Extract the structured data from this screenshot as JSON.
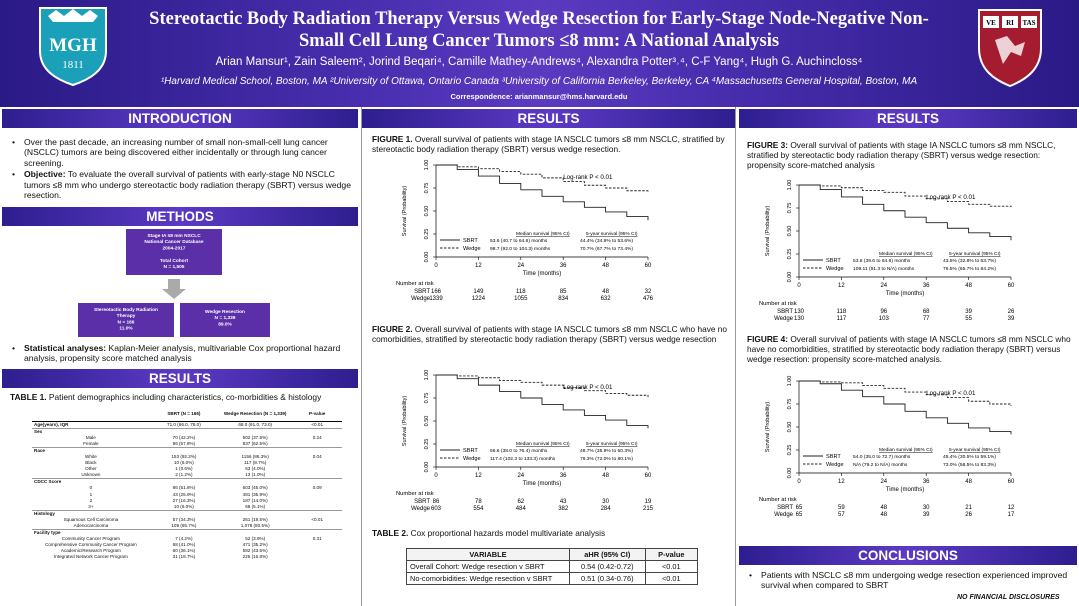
{
  "header": {
    "title": "Stereotactic Body Radiation Therapy Versus Wedge Resection for Early-Stage Node-Negative Non-Small Cell Lung Cancer Tumors ≤8 mm: A National Analysis",
    "authors": "Arian Mansur¹, Zain Saleem², Jorind Beqari⁴, Camille Mathey-Andrews⁴, Alexandra Potter³˒⁴, C-F Yang⁴, Hugh G. Auchincloss⁴",
    "affiliations": "¹Harvard Medical School, Boston, MA  ²University of Ottawa, Ontario Canada ³University of California Berkeley, Berkeley, CA ⁴Massachusetts General Hospital, Boston, MA",
    "correspondence": "Correspondence: arianmansur@hms.harvard.edu",
    "mgh_logo": {
      "text": "MGH",
      "year": "1811"
    },
    "harvard_logo": {
      "letters": [
        "VE",
        "RI",
        "TAS"
      ]
    }
  },
  "introduction": {
    "heading": "INTRODUCTION",
    "bullets": [
      "Over the past decade, an increasing number of small non-small-cell lung cancer (NSCLC) tumors are being discovered either incidentally or through lung cancer screening."
    ],
    "objective_label": "Objective:",
    "objective_text": " To evaluate the overall survival of patients with early-stage N0 NSCLC tumors ≤8 mm who undergo stereotactic body radiation therapy (SBRT) versus wedge resection."
  },
  "methods": {
    "heading": "METHODS",
    "flow_top": [
      "Stage IA ≤8 mm NSCLC",
      "National Cancer Database",
      "2004-2017",
      "",
      "Total Cohort",
      "N = 1,505"
    ],
    "flow_left": [
      "Stereotactic Body Radiation",
      "Therapy",
      "N = 166",
      "11.0%"
    ],
    "flow_right": [
      "Wedge Resection",
      "N = 1,339",
      "89.0%"
    ],
    "stat_label": "Statistical analyses:",
    "stat_text": " Kaplan-Meier analysis, multivariable Cox proportional hazard analysis, propensity score matched analysis"
  },
  "results_left": {
    "heading": "RESULTS",
    "table1_caption_label": "TABLE 1.",
    "table1_caption": "  Patient demographics including characteristics, co-morbidities & histology",
    "table1_headers": [
      "",
      "SBRT (N = 166)",
      "Wedge Resection (N = 1,339)",
      "P-value"
    ],
    "table1_rows": [
      {
        "label": "Age(years), IQR",
        "sbrt": "71.0 (66.0, 78.0)",
        "wedge": "68.0 (61.0, 73.0)",
        "p": "<0.01",
        "bold": true
      },
      {
        "label": "Sex",
        "sbrt": "",
        "wedge": "",
        "p": "",
        "bold": true
      },
      {
        "label": "Male",
        "sbrt": "70 (42.2%)",
        "wedge": "502 (37.5%)",
        "p": "0.24",
        "indent": true
      },
      {
        "label": "Female",
        "sbrt": "96 (57.8%)",
        "wedge": "837 (62.5%)",
        "p": "",
        "indent": true
      },
      {
        "label": "Race",
        "sbrt": "",
        "wedge": "",
        "p": "",
        "bold": true
      },
      {
        "label": "White",
        "sbrt": "153 (92.2%)",
        "wedge": "1156 (86.3%)",
        "p": "0.04",
        "indent": true
      },
      {
        "label": "Black",
        "sbrt": "10 (6.0%)",
        "wedge": "117 (8.7%)",
        "p": "",
        "indent": true
      },
      {
        "label": "Other",
        "sbrt": "1 (0.6%)",
        "wedge": "53 (4.0%)",
        "p": "",
        "indent": true
      },
      {
        "label": "Unknown",
        "sbrt": "2 (1.2%)",
        "wedge": "13 (1.0%)",
        "p": "",
        "indent": true
      },
      {
        "label": "CDCC Score",
        "sbrt": "",
        "wedge": "",
        "p": "",
        "bold": true
      },
      {
        "label": "0",
        "sbrt": "86 (51.8%)",
        "wedge": "603 (45.0%)",
        "p": "0.09",
        "indent": true
      },
      {
        "label": "1",
        "sbrt": "43 (25.9%)",
        "wedge": "481 (35.9%)",
        "p": "",
        "indent": true
      },
      {
        "label": "2",
        "sbrt": "27 (16.3%)",
        "wedge": "187 (14.0%)",
        "p": "",
        "indent": true
      },
      {
        "label": "3+",
        "sbrt": "10 (6.0%)",
        "wedge": "68 (5.1%)",
        "p": "",
        "indent": true
      },
      {
        "label": "Histology",
        "sbrt": "",
        "wedge": "",
        "p": "",
        "bold": true
      },
      {
        "label": "Squamous Cell Carcinoma",
        "sbrt": "57 (34.3%)",
        "wedge": "261 (19.5%)",
        "p": "<0.01",
        "indent": true
      },
      {
        "label": "Adenocarcinoma",
        "sbrt": "109 (65.7%)",
        "wedge": "1,078 (80.5%)",
        "p": "",
        "indent": true
      },
      {
        "label": "Facility type",
        "sbrt": "",
        "wedge": "",
        "p": "",
        "bold": true
      },
      {
        "label": "Community Cancer Program",
        "sbrt": "7 (4.2%)",
        "wedge": "52 (3.9%)",
        "p": "0.31",
        "indent": true
      },
      {
        "label": "Comprehensive Community Cancer Program",
        "sbrt": "68 (41.0%)",
        "wedge": "471 (35.2%)",
        "p": "",
        "indent": true
      },
      {
        "label": "Academic/Research Program",
        "sbrt": "60 (36.1%)",
        "wedge": "582 (43.5%)",
        "p": "",
        "indent": true
      },
      {
        "label": "Integrated Network Cancer Program",
        "sbrt": "31 (18.7%)",
        "wedge": "225 (16.8%)",
        "p": "",
        "indent": true
      }
    ]
  },
  "results_mid": {
    "heading": "RESULTS",
    "fig1_label": "FIGURE 1.",
    "fig1_caption": " Overall survival of patients with stage IA NSCLC tumors ≤8 mm NSCLC, stratified by stereotactic body radiation therapy (SBRT) versus wedge resection.",
    "fig2_label": "FIGURE 2.",
    "fig2_caption": " Overall survival of patients with stage IA NSCLC tumors ≤8 mm NSCLC who have no comorbidities, stratified by stereotactic body radiation therapy (SBRT) versus wedge resection",
    "table2_label": "TABLE 2.",
    "table2_caption": " Cox proportional hazards model multivariate analysis",
    "table2_headers": [
      "VARIABLE",
      "aHR (95% CI)",
      "P-value"
    ],
    "table2_rows": [
      [
        "Overall Cohort: Wedge resection v SBRT",
        "0.54 (0.42-0.72)",
        "<0.01"
      ],
      [
        "No-comorbidities: Wedge resection v SBRT",
        "0.51 (0.34-0.76)",
        "<0.01"
      ]
    ]
  },
  "results_right": {
    "heading": "RESULTS",
    "fig3_label": "FIGURE 3:",
    "fig3_caption": " Overall survival of patients with stage IA NSCLC tumors ≤8 mm NSCLC, stratified by stereotactic body radiation therapy (SBRT) versus wedge resection: propensity score-matched analysis",
    "fig4_label": "FIGURE 4:",
    "fig4_caption": " Overall survival of patients with stage IA NSCLC tumors ≤8 mm NSCLC who have no comorbidities, stratified by stereotactic body radiation therapy (SBRT) versus wedge resection: propensity score-matched analysis."
  },
  "conclusions": {
    "heading": "CONCLUSIONS",
    "bullets": [
      "Patients with NSCLC ≤8 mm undergoing wedge resection experienced improved survival when compared to SBRT"
    ],
    "disclosures": "NO FINANCIAL DISCLOSURES"
  },
  "chart_data": [
    {
      "id": "fig1",
      "type": "line",
      "xlabel": "Time (months)",
      "ylabel": "Survival (Probability)",
      "xlim": [
        0,
        60
      ],
      "ylim": [
        0,
        1
      ],
      "xticks": [
        "0",
        "12",
        "24",
        "36",
        "48",
        "60"
      ],
      "yticks": [
        "0.00",
        "0.25",
        "0.50",
        "0.75",
        "1.00"
      ],
      "annotation": "Log-rank P < 0.01",
      "median_header": "Median survival (95% CI)",
      "fiveyr_header": "5-year survival (95% CI)",
      "series": [
        {
          "name": "SBRT",
          "style": "solid",
          "median": "53.6 (40.7 to 64.6) months",
          "fiveyr": "44.4% (34.9% to 53.6%)",
          "x": [
            0,
            6,
            12,
            18,
            24,
            30,
            36,
            42,
            48,
            54,
            60
          ],
          "y": [
            1.0,
            0.95,
            0.88,
            0.8,
            0.73,
            0.66,
            0.6,
            0.54,
            0.49,
            0.44,
            0.4
          ]
        },
        {
          "name": "Wedge",
          "style": "dashed",
          "median": "98.7 (92.0 to 104.3) months",
          "fiveyr": "70.7% (67.7% to 73.4%)",
          "x": [
            0,
            6,
            12,
            18,
            24,
            30,
            36,
            42,
            48,
            54,
            60
          ],
          "y": [
            1.0,
            0.98,
            0.96,
            0.93,
            0.9,
            0.86,
            0.82,
            0.78,
            0.75,
            0.72,
            0.7
          ]
        }
      ],
      "at_risk_label": "Number at risk",
      "at_risk": [
        {
          "name": "SBRT",
          "values": [
            "166",
            "149",
            "118",
            "85",
            "48",
            "32"
          ]
        },
        {
          "name": "Wedge",
          "values": [
            "1339",
            "1224",
            "1055",
            "834",
            "632",
            "476"
          ]
        }
      ]
    },
    {
      "id": "fig2",
      "type": "line",
      "xlabel": "Time (months)",
      "ylabel": "Survival (Probability)",
      "xlim": [
        0,
        60
      ],
      "ylim": [
        0,
        1
      ],
      "xticks": [
        "0",
        "12",
        "24",
        "36",
        "48",
        "60"
      ],
      "yticks": [
        "0.00",
        "0.25",
        "0.50",
        "0.75",
        "1.00"
      ],
      "annotation": "Log-rank P < 0.01",
      "median_header": "Median survival (95% CI)",
      "fiveyr_header": "5-year survival (95% CI)",
      "series": [
        {
          "name": "SBRT",
          "style": "solid",
          "median": "56.6 (38.0 to 76.4) months",
          "fiveyr": "48.7% (35.9% to 60.3%)",
          "x": [
            0,
            6,
            12,
            18,
            24,
            30,
            36,
            42,
            48,
            54,
            60
          ],
          "y": [
            1.0,
            0.96,
            0.89,
            0.82,
            0.75,
            0.68,
            0.62,
            0.56,
            0.51,
            0.45,
            0.42
          ]
        },
        {
          "name": "Wedge",
          "style": "dashed",
          "median": "117.4 (102.3 to 133.3) months",
          "fiveyr": "76.3% (72.0% to 80.1%)",
          "x": [
            0,
            6,
            12,
            18,
            24,
            30,
            36,
            42,
            48,
            54,
            60
          ],
          "y": [
            1.0,
            0.99,
            0.97,
            0.94,
            0.92,
            0.89,
            0.86,
            0.83,
            0.8,
            0.78,
            0.76
          ]
        }
      ],
      "at_risk_label": "Number at risk",
      "at_risk": [
        {
          "name": "SBRT",
          "values": [
            "86",
            "78",
            "62",
            "43",
            "30",
            "19"
          ]
        },
        {
          "name": "Wedge",
          "values": [
            "603",
            "554",
            "484",
            "382",
            "284",
            "215"
          ]
        }
      ]
    },
    {
      "id": "fig3",
      "type": "line",
      "xlabel": "Time (months)",
      "ylabel": "Survival (Probability)",
      "xlim": [
        0,
        60
      ],
      "ylim": [
        0,
        1
      ],
      "xticks": [
        "0",
        "12",
        "24",
        "36",
        "48",
        "60"
      ],
      "yticks": [
        "0.00",
        "0.25",
        "0.50",
        "0.75",
        "1.00"
      ],
      "annotation": "Log-rank P < 0.01",
      "median_header": "Median survival (95% CI)",
      "fiveyr_header": "5-year survival (95% CI)",
      "series": [
        {
          "name": "SBRT",
          "style": "solid",
          "median": "53.6 (39.6 to 64.6) months",
          "fiveyr": "43.5% (32.8% to 53.7%)",
          "x": [
            0,
            6,
            12,
            18,
            24,
            30,
            36,
            42,
            48,
            54,
            60
          ],
          "y": [
            1.0,
            0.95,
            0.87,
            0.79,
            0.72,
            0.65,
            0.59,
            0.53,
            0.48,
            0.44,
            0.4
          ]
        },
        {
          "name": "Wedge",
          "style": "dashed",
          "median": "109.11 (91.3 to N/A) months",
          "fiveyr": "76.5% (65.7% to 84.2%)",
          "x": [
            0,
            6,
            12,
            18,
            24,
            30,
            36,
            42,
            48,
            54,
            60
          ],
          "y": [
            1.0,
            0.99,
            0.97,
            0.94,
            0.92,
            0.88,
            0.85,
            0.82,
            0.79,
            0.77,
            0.76
          ]
        }
      ],
      "at_risk_label": "Number at risk",
      "at_risk": [
        {
          "name": "SBRT",
          "values": [
            "130",
            "118",
            "96",
            "68",
            "39",
            "26"
          ]
        },
        {
          "name": "Wedge",
          "values": [
            "130",
            "117",
            "103",
            "77",
            "55",
            "39"
          ]
        }
      ]
    },
    {
      "id": "fig4",
      "type": "line",
      "xlabel": "Time (months)",
      "ylabel": "Survival (Probability)",
      "xlim": [
        0,
        60
      ],
      "ylim": [
        0,
        1
      ],
      "xticks": [
        "0",
        "12",
        "24",
        "36",
        "48",
        "60"
      ],
      "yticks": [
        "0.00",
        "0.25",
        "0.50",
        "0.75",
        "1.00"
      ],
      "annotation": "Log-rank P < 0.01",
      "median_header": "Median survival (95% CI)",
      "fiveyr_header": "5-year survival (95% CI)",
      "series": [
        {
          "name": "SBRT",
          "style": "solid",
          "median": "54.0 (35.0 to 72.7) months",
          "fiveyr": "45.4% (30.5% to 59.1%)",
          "x": [
            0,
            6,
            12,
            18,
            24,
            30,
            36,
            42,
            48,
            54,
            60
          ],
          "y": [
            1.0,
            0.97,
            0.9,
            0.83,
            0.75,
            0.67,
            0.6,
            0.54,
            0.49,
            0.45,
            0.42
          ]
        },
        {
          "name": "Wedge",
          "style": "dashed",
          "median": "N/A (79.2 to N/A) months",
          "fiveyr": "73.0% (58.5% to 83.3%)",
          "x": [
            0,
            6,
            12,
            18,
            24,
            30,
            36,
            42,
            48,
            54,
            60
          ],
          "y": [
            1.0,
            0.99,
            0.98,
            0.95,
            0.92,
            0.88,
            0.85,
            0.82,
            0.78,
            0.75,
            0.73
          ]
        }
      ],
      "at_risk_label": "Number at risk",
      "at_risk": [
        {
          "name": "SBRT",
          "values": [
            "65",
            "59",
            "48",
            "30",
            "21",
            "12"
          ]
        },
        {
          "name": "Wedge",
          "values": [
            "65",
            "57",
            "48",
            "39",
            "26",
            "17"
          ]
        }
      ]
    }
  ]
}
